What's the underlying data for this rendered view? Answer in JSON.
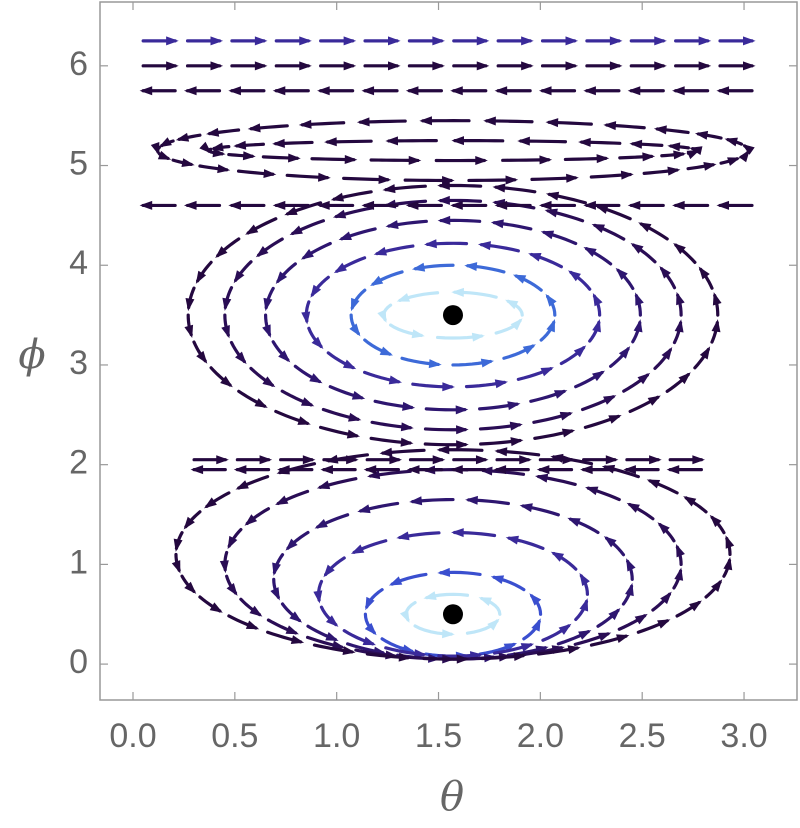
{
  "chart_data": {
    "type": "stream",
    "x_label": "θ",
    "y_label": "ϕ",
    "xlim": [
      -0.162,
      3.26
    ],
    "ylim": [
      -0.36,
      6.64
    ],
    "xticks": [
      {
        "value": 0,
        "label": "0.0"
      },
      0.5,
      {
        "value": 1,
        "label": "1.0"
      },
      1.5,
      {
        "value": 2,
        "label": "2.0"
      },
      2.5,
      {
        "value": 3,
        "label": "3.0"
      }
    ],
    "yticks": [
      0,
      1,
      2,
      3,
      4,
      5,
      6
    ],
    "direction": "counterclockwise",
    "orbits": [
      {
        "center": [
          1.571,
          3.5
        ],
        "radii": [
          0.34,
          0.23
        ],
        "color": "#bfe6f8"
      },
      {
        "center": [
          1.571,
          3.5
        ],
        "radii": [
          0.5,
          0.5
        ],
        "color": "#3d6ad8"
      },
      {
        "center": [
          1.571,
          3.5
        ],
        "radii": [
          0.72,
          0.72
        ],
        "color": "#3a2a9a"
      },
      {
        "center": [
          1.571,
          3.5
        ],
        "radii": [
          0.92,
          0.95
        ],
        "color": "#2e1670"
      },
      {
        "center": [
          1.571,
          3.5
        ],
        "radii": [
          1.12,
          1.15
        ],
        "color": "#2a0d55"
      },
      {
        "center": [
          1.571,
          3.5
        ],
        "radii": [
          1.3,
          1.3
        ],
        "color": "#24083f"
      },
      {
        "center": [
          1.571,
          0.5
        ],
        "radii": [
          0.23,
          0.2
        ],
        "color": "#bfe6f8"
      },
      {
        "center": [
          1.571,
          0.5
        ],
        "radii": [
          0.43,
          0.42
        ],
        "color": "#3a4fcf"
      },
      {
        "center": [
          1.571,
          0.7
        ],
        "radii": [
          0.66,
          0.62
        ],
        "color": "#3a2a9a"
      },
      {
        "center": [
          1.571,
          0.85
        ],
        "radii": [
          0.88,
          0.8
        ],
        "color": "#2e1670"
      },
      {
        "center": [
          1.571,
          1.0
        ],
        "radii": [
          1.12,
          0.95
        ],
        "color": "#2a0d55"
      },
      {
        "center": [
          1.571,
          1.1
        ],
        "radii": [
          1.36,
          1.05
        ],
        "color": "#24083f"
      },
      {
        "center": [
          1.571,
          5.15
        ],
        "radii": [
          1.2,
          0.1
        ],
        "color": "#24083f"
      },
      {
        "center": [
          1.571,
          5.15
        ],
        "radii": [
          1.45,
          0.3
        ],
        "color": "#24083f"
      }
    ],
    "lines": [
      {
        "y": 6.25,
        "x": [
          0.05,
          3.1
        ],
        "direction": "right",
        "color": "#3a2a9a"
      },
      {
        "y": 6.0,
        "x": [
          0.05,
          3.1
        ],
        "direction": "right",
        "color": "#24083f"
      },
      {
        "y": 5.75,
        "x": [
          0.05,
          3.1
        ],
        "direction": "left",
        "color": "#24083f"
      },
      {
        "y": 4.6,
        "x": [
          0.05,
          3.1
        ],
        "direction": "left",
        "color": "#24083f"
      },
      {
        "y": 2.05,
        "x": [
          0.3,
          2.85
        ],
        "direction": "right",
        "color": "#24083f"
      },
      {
        "y": 1.95,
        "x": [
          0.3,
          2.85
        ],
        "direction": "left",
        "color": "#24083f"
      }
    ],
    "points": {
      "x": [
        1.571,
        1.571
      ],
      "y": [
        0.5,
        3.5
      ],
      "color": "#000000"
    }
  }
}
